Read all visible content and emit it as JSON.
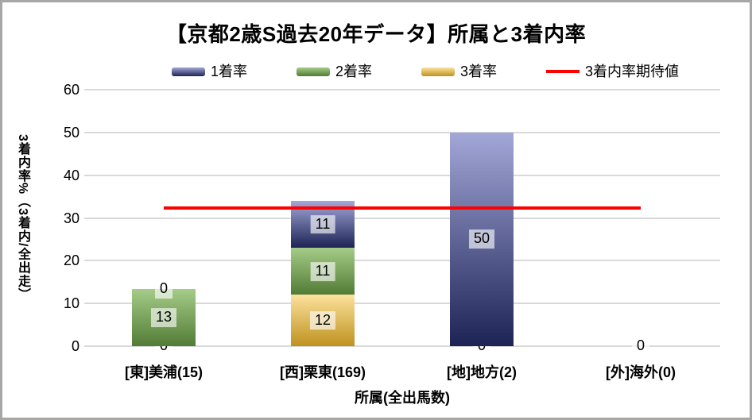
{
  "chart_data": {
    "type": "bar",
    "subtype": "stacked-bars-with-target-line",
    "title": "【京都2歳S過去20年データ】所属と3着内率",
    "xlabel": "所属(全出馬数)",
    "ylabel": "3着内率%（3着内/全出走）",
    "ylim": [
      0,
      60
    ],
    "yticks": [
      0,
      10,
      20,
      30,
      40,
      50,
      60
    ],
    "grid": true,
    "legend_position": "top",
    "categories": [
      "[東]美浦(15)",
      "[西]栗東(169)",
      "[地]地方(2)",
      "[外]海外(0)"
    ],
    "stack_order_bottom_to_top": [
      "3着率",
      "2着率",
      "1着率"
    ],
    "series": [
      {
        "name": "1着率",
        "values": [
          0,
          11,
          50,
          0
        ],
        "labels": [
          "0",
          "11",
          "50",
          "0"
        ],
        "color_top": "#a2a7d7",
        "color_bottom": "#1d2355"
      },
      {
        "name": "2着率",
        "values": [
          13.33,
          11,
          0,
          0
        ],
        "labels": [
          "13",
          "11",
          "0",
          "0"
        ],
        "color_top": "#a5cc88",
        "color_bottom": "#527c36"
      },
      {
        "name": "3着率",
        "values": [
          0,
          12,
          0,
          0
        ],
        "labels": [
          "0",
          "12",
          "0",
          "0"
        ],
        "color_top": "#fce29d",
        "color_bottom": "#bf9220"
      }
    ],
    "line": {
      "name": "3着内率期待値",
      "value": 32.3,
      "color": "#ff0000",
      "spans_categories": [
        "[東]美浦(15)",
        "[外]海外(0)"
      ]
    },
    "colors": {
      "gridline": "#d9d9d9",
      "frame_border": "#a8a5a5",
      "text": "#000000",
      "label_background": "rgba(255,255,255,0.62)"
    }
  }
}
